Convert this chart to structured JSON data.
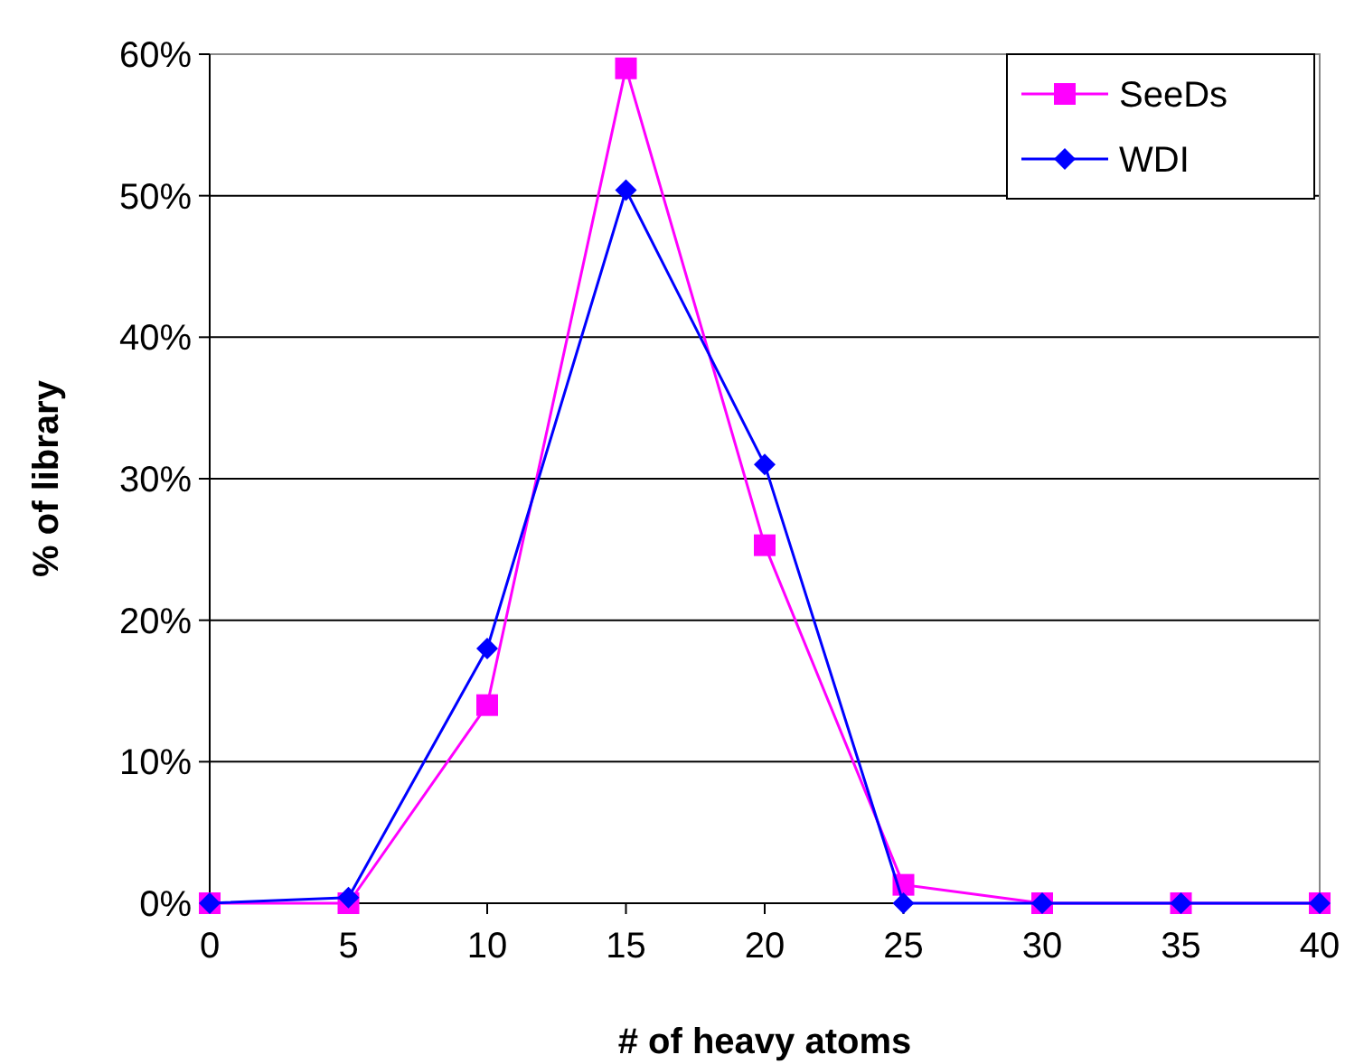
{
  "chart_data": {
    "type": "line",
    "xlabel": "# of heavy atoms",
    "ylabel": "% of library",
    "x": [
      0,
      5,
      10,
      15,
      20,
      25,
      30,
      35,
      40
    ],
    "series": [
      {
        "name": "SeeDs",
        "color": "#ff00ff",
        "marker": "square",
        "values": [
          0,
          0,
          14,
          59,
          25.3,
          1.3,
          0,
          0,
          0
        ]
      },
      {
        "name": "WDI",
        "color": "#0000ff",
        "marker": "diamond",
        "values": [
          0,
          0.4,
          18,
          50.4,
          31,
          0,
          0,
          0,
          0
        ]
      }
    ],
    "xlim": [
      0,
      40
    ],
    "xticks": [
      0,
      5,
      10,
      15,
      20,
      25,
      30,
      35,
      40
    ],
    "ylim": [
      0,
      60
    ],
    "yticks": [
      {
        "value": 0,
        "label": "0%"
      },
      {
        "value": 10,
        "label": "10%"
      },
      {
        "value": 20,
        "label": "20%"
      },
      {
        "value": 30,
        "label": "30%"
      },
      {
        "value": 40,
        "label": "40%"
      },
      {
        "value": 50,
        "label": "50%"
      },
      {
        "value": 60,
        "label": "60%"
      }
    ],
    "grid": "y",
    "legend": "top right"
  }
}
